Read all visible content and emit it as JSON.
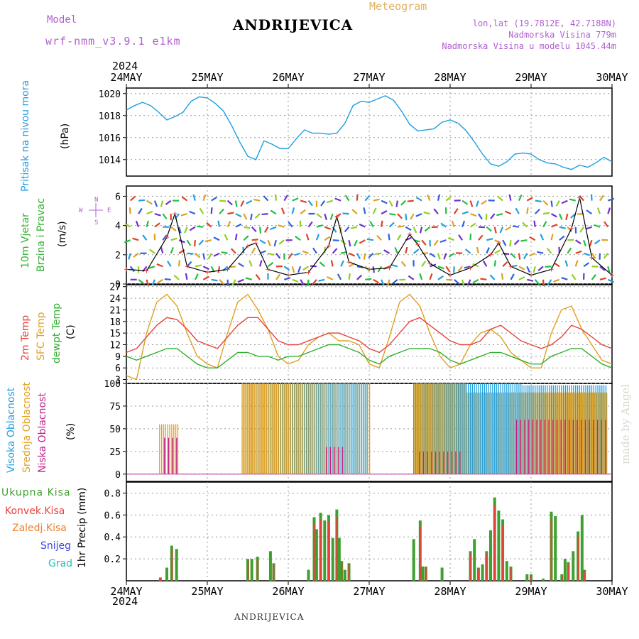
{
  "header": {
    "model_label": "Model",
    "model_name": "wrf-nmm_v3.9.1 e1km",
    "station": "ANDRIJEVICA",
    "meteogram": "Meteogram",
    "lonlat": "lon,lat (19.7812E, 42.7188N)",
    "altitude": "Nadmorska Visina 779m",
    "model_altitude": "Nadmorska Visina u modelu 1045.44m",
    "footer_station": "ANDRIJEVICA",
    "credit": "made by Angel"
  },
  "colors": {
    "pressure": "#1f9fe0",
    "temp2m": "#e8413c",
    "sfc": "#e0a020",
    "dewpt": "#2fb02f",
    "cloud_high": "#1f9fe0",
    "cloud_mid": "#e0a020",
    "cloud_low": "#c0208a",
    "precip_total": "#3f9f2f",
    "precip_conv": "#e8413c",
    "purple": "#b060d0"
  },
  "axes": {
    "year": "2024",
    "dates": [
      "24MAY",
      "25MAY",
      "26MAY",
      "27MAY",
      "28MAY",
      "29MAY",
      "30MAY"
    ]
  },
  "panels": {
    "pressure": {
      "label": "Pritisak na nivou mora",
      "unit": "(hPa)",
      "ticks": [
        "1014",
        "1016",
        "1018",
        "1020"
      ]
    },
    "wind": {
      "label1": "10m Vjetar",
      "label2": "Brzina i Pravac",
      "unit": "(m/s)",
      "ticks": [
        "0",
        "2",
        "4",
        "6"
      ],
      "compass_n": "N",
      "compass_s": "S",
      "compass_w": "W",
      "compass_e": "E"
    },
    "temp": {
      "label1": "2m Temp",
      "label2": "SFC Temp",
      "label3": "dewpt Temp",
      "unit": "(C)",
      "ticks": [
        "3",
        "6",
        "9",
        "12",
        "15",
        "18",
        "21",
        "24",
        "27"
      ]
    },
    "cloud": {
      "label1": "Visoka Oblacnost",
      "label2": "Srednja Oblacnost",
      "label3": "Niska Oblacnost",
      "unit": "(%)",
      "ticks": [
        "0",
        "25",
        "50",
        "75",
        "100"
      ]
    },
    "precip": {
      "unit": "1hr Precip (mm)",
      "ticks": [
        "0.2",
        "0.4",
        "0.6",
        "0.8"
      ],
      "legend": [
        "Ukupna Kisa",
        "Konvek.Kisa",
        "Zaledj.Kisa",
        "Snijeg",
        "Grad"
      ]
    }
  },
  "chart_data": [
    {
      "type": "line",
      "title": "Pritisak na nivou mora",
      "ylabel": "(hPa)",
      "ylim": [
        1012.5,
        1020.5
      ],
      "x_range_days": [
        0,
        6
      ],
      "series": [
        {
          "name": "Pritisak na nivou mora",
          "x": [
            0,
            0.1,
            0.2,
            0.3,
            0.4,
            0.5,
            0.6,
            0.7,
            0.8,
            0.9,
            1.0,
            1.1,
            1.2,
            1.3,
            1.4,
            1.5,
            1.6,
            1.7,
            1.8,
            1.9,
            2.0,
            2.1,
            2.2,
            2.3,
            2.4,
            2.5,
            2.6,
            2.7,
            2.8,
            2.9,
            3.0,
            3.1,
            3.2,
            3.3,
            3.4,
            3.5,
            3.6,
            3.7,
            3.8,
            3.9,
            4.0,
            4.1,
            4.2,
            4.3,
            4.4,
            4.5,
            4.6,
            4.7,
            4.8,
            4.9,
            5.0,
            5.1,
            5.2,
            5.3,
            5.4,
            5.5,
            5.6,
            5.7,
            5.8,
            5.9,
            6.0
          ],
          "values": [
            1018.5,
            1018.9,
            1019.2,
            1018.9,
            1018.3,
            1017.6,
            1017.9,
            1018.3,
            1019.3,
            1019.7,
            1019.6,
            1019.1,
            1018.4,
            1017.1,
            1015.6,
            1014.3,
            1014.0,
            1015.7,
            1015.4,
            1015.0,
            1015.0,
            1015.9,
            1016.7,
            1016.4,
            1016.4,
            1016.3,
            1016.4,
            1017.3,
            1018.9,
            1019.3,
            1019.2,
            1019.5,
            1019.8,
            1019.4,
            1018.4,
            1017.2,
            1016.6,
            1016.7,
            1016.8,
            1017.4,
            1017.6,
            1017.3,
            1016.6,
            1015.6,
            1014.5,
            1013.6,
            1013.4,
            1013.8,
            1014.5,
            1014.6,
            1014.5,
            1014.0,
            1013.7,
            1013.6,
            1013.3,
            1013.1,
            1013.5,
            1013.3,
            1013.7,
            1014.2,
            1013.8
          ]
        }
      ]
    },
    {
      "type": "line",
      "title": "10m Vjetar Brzina i Pravac",
      "ylabel": "(m/s)",
      "ylim": [
        0,
        6.7
      ],
      "series": [
        {
          "name": "10m Vjetar",
          "x": [
            0,
            0.25,
            0.5,
            0.6,
            0.75,
            1.0,
            1.25,
            1.5,
            1.6,
            1.75,
            2.0,
            2.25,
            2.5,
            2.6,
            2.75,
            3.0,
            3.25,
            3.5,
            3.6,
            3.75,
            4.0,
            4.25,
            4.5,
            4.6,
            4.75,
            5.0,
            5.25,
            5.5,
            5.6,
            5.75,
            6.0
          ],
          "values": [
            1.0,
            0.9,
            3.2,
            4.8,
            1.2,
            0.8,
            1.0,
            2.6,
            2.8,
            1.0,
            0.6,
            0.8,
            2.6,
            4.6,
            1.5,
            1.0,
            1.1,
            3.4,
            2.7,
            1.4,
            0.6,
            1.1,
            2.0,
            2.8,
            1.2,
            0.6,
            1.0,
            3.8,
            5.9,
            1.8,
            0.6
          ]
        }
      ]
    },
    {
      "type": "line",
      "title": "Temperature",
      "ylabel": "(C)",
      "ylim": [
        2,
        27.5
      ],
      "x": [
        0,
        0.125,
        0.25,
        0.375,
        0.5,
        0.625,
        0.75,
        0.875,
        1.0,
        1.125,
        1.25,
        1.375,
        1.5,
        1.625,
        1.75,
        1.875,
        2.0,
        2.125,
        2.25,
        2.375,
        2.5,
        2.625,
        2.75,
        2.875,
        3.0,
        3.125,
        3.25,
        3.375,
        3.5,
        3.625,
        3.75,
        3.875,
        4.0,
        4.125,
        4.25,
        4.375,
        4.5,
        4.625,
        4.75,
        4.875,
        5.0,
        5.125,
        5.25,
        5.375,
        5.5,
        5.625,
        5.75,
        5.875,
        6.0
      ],
      "series": [
        {
          "name": "2m Temp",
          "values": [
            10,
            11,
            14,
            17,
            19,
            18.5,
            16,
            13,
            12,
            11,
            14,
            17,
            19,
            19,
            16,
            13,
            12,
            12,
            13,
            14,
            15,
            15,
            14,
            13,
            11,
            10,
            12,
            15,
            18,
            19,
            17,
            15,
            13,
            12,
            12,
            13,
            16,
            17,
            15,
            13,
            12,
            11,
            12,
            14,
            17,
            16,
            14,
            12,
            11
          ]
        },
        {
          "name": "SFC Temp",
          "values": [
            4,
            3,
            15,
            23,
            25,
            22,
            15,
            9,
            7,
            6,
            15,
            23,
            25,
            21,
            16,
            9,
            7,
            8,
            12,
            14,
            15,
            13,
            13,
            12,
            7,
            6,
            14,
            23,
            25,
            22,
            15,
            9,
            6,
            7,
            12,
            15,
            16,
            14,
            10,
            8,
            6,
            6,
            15,
            21,
            22,
            16,
            12,
            8,
            7
          ]
        },
        {
          "name": "dewpt Temp",
          "values": [
            9,
            8,
            9,
            10,
            11,
            11,
            9,
            7,
            6,
            6,
            8,
            10,
            10,
            9,
            9,
            8,
            9,
            9,
            10,
            11,
            12,
            12,
            11,
            10,
            8,
            7,
            9,
            10,
            11,
            11,
            11,
            10,
            8,
            7,
            8,
            9,
            10,
            10,
            9,
            8,
            7,
            7,
            9,
            10,
            11,
            11,
            9,
            7,
            6
          ]
        }
      ]
    },
    {
      "type": "bar",
      "title": "Oblacnost",
      "ylabel": "(%)",
      "ylim": [
        0,
        100
      ],
      "series": [
        {
          "name": "Visoka Oblacnost",
          "segments": [
            [
              1.45,
              2.98,
              100
            ],
            [
              3.55,
              4.9,
              100
            ],
            [
              4.9,
              5.95,
              98
            ]
          ]
        },
        {
          "name": "Srednja Oblacnost",
          "segments": [
            [
              0.4,
              0.65,
              55
            ],
            [
              1.42,
              3.0,
              100
            ],
            [
              3.55,
              4.2,
              100
            ],
            [
              4.2,
              5.95,
              90
            ]
          ]
        },
        {
          "name": "Niska Oblacnost",
          "segments": [
            [
              0.45,
              0.62,
              40
            ],
            [
              2.45,
              2.65,
              30
            ],
            [
              3.6,
              4.1,
              25
            ],
            [
              4.8,
              5.9,
              60
            ]
          ]
        }
      ]
    },
    {
      "type": "bar",
      "title": "1hr Precip",
      "ylabel": "1hr Precip (mm)",
      "ylim": [
        0,
        0.9
      ],
      "series": [
        {
          "name": "Ukupna Kisa",
          "x": [
            0.42,
            0.5,
            0.56,
            0.62,
            1.5,
            1.55,
            1.62,
            1.78,
            1.82,
            2.25,
            2.32,
            2.35,
            2.4,
            2.45,
            2.5,
            2.55,
            2.6,
            2.63,
            2.66,
            2.7,
            2.75,
            3.55,
            3.63,
            3.66,
            3.7,
            3.9,
            4.25,
            4.3,
            4.35,
            4.4,
            4.45,
            4.5,
            4.55,
            4.6,
            4.65,
            4.7,
            4.75,
            4.95,
            5.0,
            5.15,
            5.25,
            5.3,
            5.38,
            5.42,
            5.46,
            5.52,
            5.58,
            5.63,
            5.66
          ],
          "values": [
            0.03,
            0.12,
            0.32,
            0.29,
            0.2,
            0.2,
            0.22,
            0.27,
            0.16,
            0.1,
            0.58,
            0.47,
            0.62,
            0.55,
            0.6,
            0.39,
            0.65,
            0.39,
            0.18,
            0.1,
            0.16,
            0.38,
            0.55,
            0.13,
            0.13,
            0.12,
            0.27,
            0.38,
            0.12,
            0.15,
            0.27,
            0.46,
            0.76,
            0.64,
            0.56,
            0.18,
            0.13,
            0.06,
            0.06,
            0.02,
            0.63,
            0.59,
            0.06,
            0.2,
            0.17,
            0.27,
            0.45,
            0.6,
            0.1
          ]
        }
      ]
    }
  ]
}
